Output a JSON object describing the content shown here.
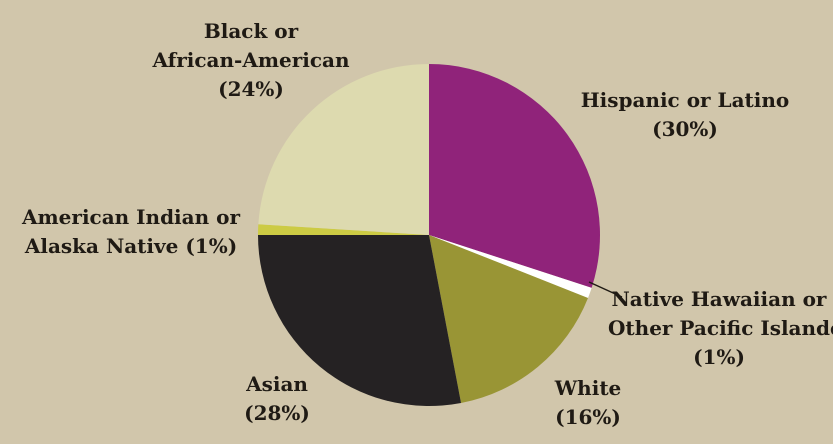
{
  "chart_data": {
    "type": "pie",
    "start_angle_deg": 0,
    "direction": "clockwise",
    "slices": [
      {
        "label": "Hispanic or Latino",
        "value": 30,
        "value_text": "(30%)",
        "color": "#90237a"
      },
      {
        "label": "Native Hawaiian or Other Pacific Islander",
        "value": 1,
        "value_text": "(1%)",
        "color": "#ffffff"
      },
      {
        "label": "White",
        "value": 16,
        "value_text": "(16%)",
        "color": "#999535"
      },
      {
        "label": "Asian",
        "value": 28,
        "value_text": "(28%)",
        "color": "#252223"
      },
      {
        "label": "American Indian or Alaska Native",
        "value": 1,
        "value_text": "(1%)",
        "color": "#cccb44"
      },
      {
        "label": "Black or African-American",
        "value": 24,
        "value_text": "(24%)",
        "color": "#dddaaf"
      }
    ],
    "label_lines": {
      "hispanic": [
        "Hispanic or Latino",
        "(30%)"
      ],
      "native_hawaiian": [
        "Native Hawaiian or",
        "Other Pacific Islander",
        "(1%)"
      ],
      "white": [
        "White",
        "(16%)"
      ],
      "asian": [
        "Asian",
        "(28%)"
      ],
      "american_indian": [
        "American Indian or",
        "Alaska Native (1%)"
      ],
      "black": [
        "Black or",
        "African-American",
        "(24%)"
      ]
    }
  },
  "colors": {
    "background": "#d1c6ab",
    "leader_line": "#1f1a14"
  }
}
